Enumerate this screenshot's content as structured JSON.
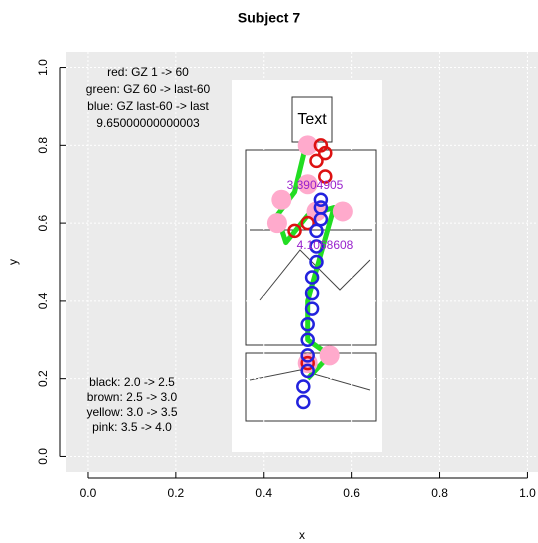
{
  "chart_data": {
    "type": "scatter",
    "title": "Subject 7",
    "xlabel": "x",
    "ylabel": "y",
    "xlim": [
      -0.05,
      1.04
    ],
    "ylim": [
      -0.04,
      1.04
    ],
    "xticks": [
      {
        "value": 0,
        "label": "0.0"
      },
      0.2,
      0.4,
      0.6,
      0.8,
      {
        "value": 1,
        "label": "1.0"
      }
    ],
    "yticks": [
      {
        "value": 0,
        "label": "0.0"
      },
      0.2,
      0.4,
      0.6,
      0.8,
      {
        "value": 1,
        "label": "1.0"
      }
    ],
    "grid": true,
    "legend_top": [
      "red: GZ 1 -> 60",
      "green: GZ 60 -> last-60",
      "blue: GZ last-60 -> last",
      "9.65000000000003"
    ],
    "legend_bottom": [
      "black: 2.0 -> 2.5",
      "brown: 2.5 -> 3.0",
      "yellow: 3.0 -> 3.5",
      "pink: 3.5 -> 4.0"
    ],
    "image_text": "Text",
    "annotations": [
      "3.3904905",
      "4.1068608"
    ],
    "series": [
      {
        "color": "#22dd22",
        "style": "line",
        "x": [
          0.5,
          0.47,
          0.43,
          0.45,
          0.5,
          0.56,
          0.5,
          0.5,
          0.55,
          0.5
        ],
        "values": [
          0.82,
          0.68,
          0.62,
          0.55,
          0.62,
          0.64,
          0.4,
          0.3,
          0.26,
          0.2
        ]
      },
      {
        "color": "#ffaacc",
        "style": "blob",
        "x": [
          0.5,
          0.44,
          0.43,
          0.52,
          0.58,
          0.55,
          0.5,
          0.5
        ],
        "values": [
          0.8,
          0.66,
          0.6,
          0.63,
          0.63,
          0.26,
          0.24,
          0.7
        ]
      },
      {
        "color": "#dd1111",
        "style": "circle",
        "x": [
          0.53,
          0.54,
          0.52,
          0.47,
          0.5,
          0.54,
          0.5
        ],
        "values": [
          0.8,
          0.78,
          0.76,
          0.58,
          0.6,
          0.72,
          0.24
        ]
      },
      {
        "color": "#2222dd",
        "style": "circle",
        "x": [
          0.49,
          0.49,
          0.5,
          0.5,
          0.5,
          0.5,
          0.51,
          0.51,
          0.51,
          0.52,
          0.52,
          0.52,
          0.53,
          0.53,
          0.53
        ],
        "values": [
          0.14,
          0.18,
          0.22,
          0.26,
          0.3,
          0.34,
          0.38,
          0.42,
          0.46,
          0.5,
          0.54,
          0.58,
          0.61,
          0.64,
          0.66
        ]
      }
    ]
  }
}
